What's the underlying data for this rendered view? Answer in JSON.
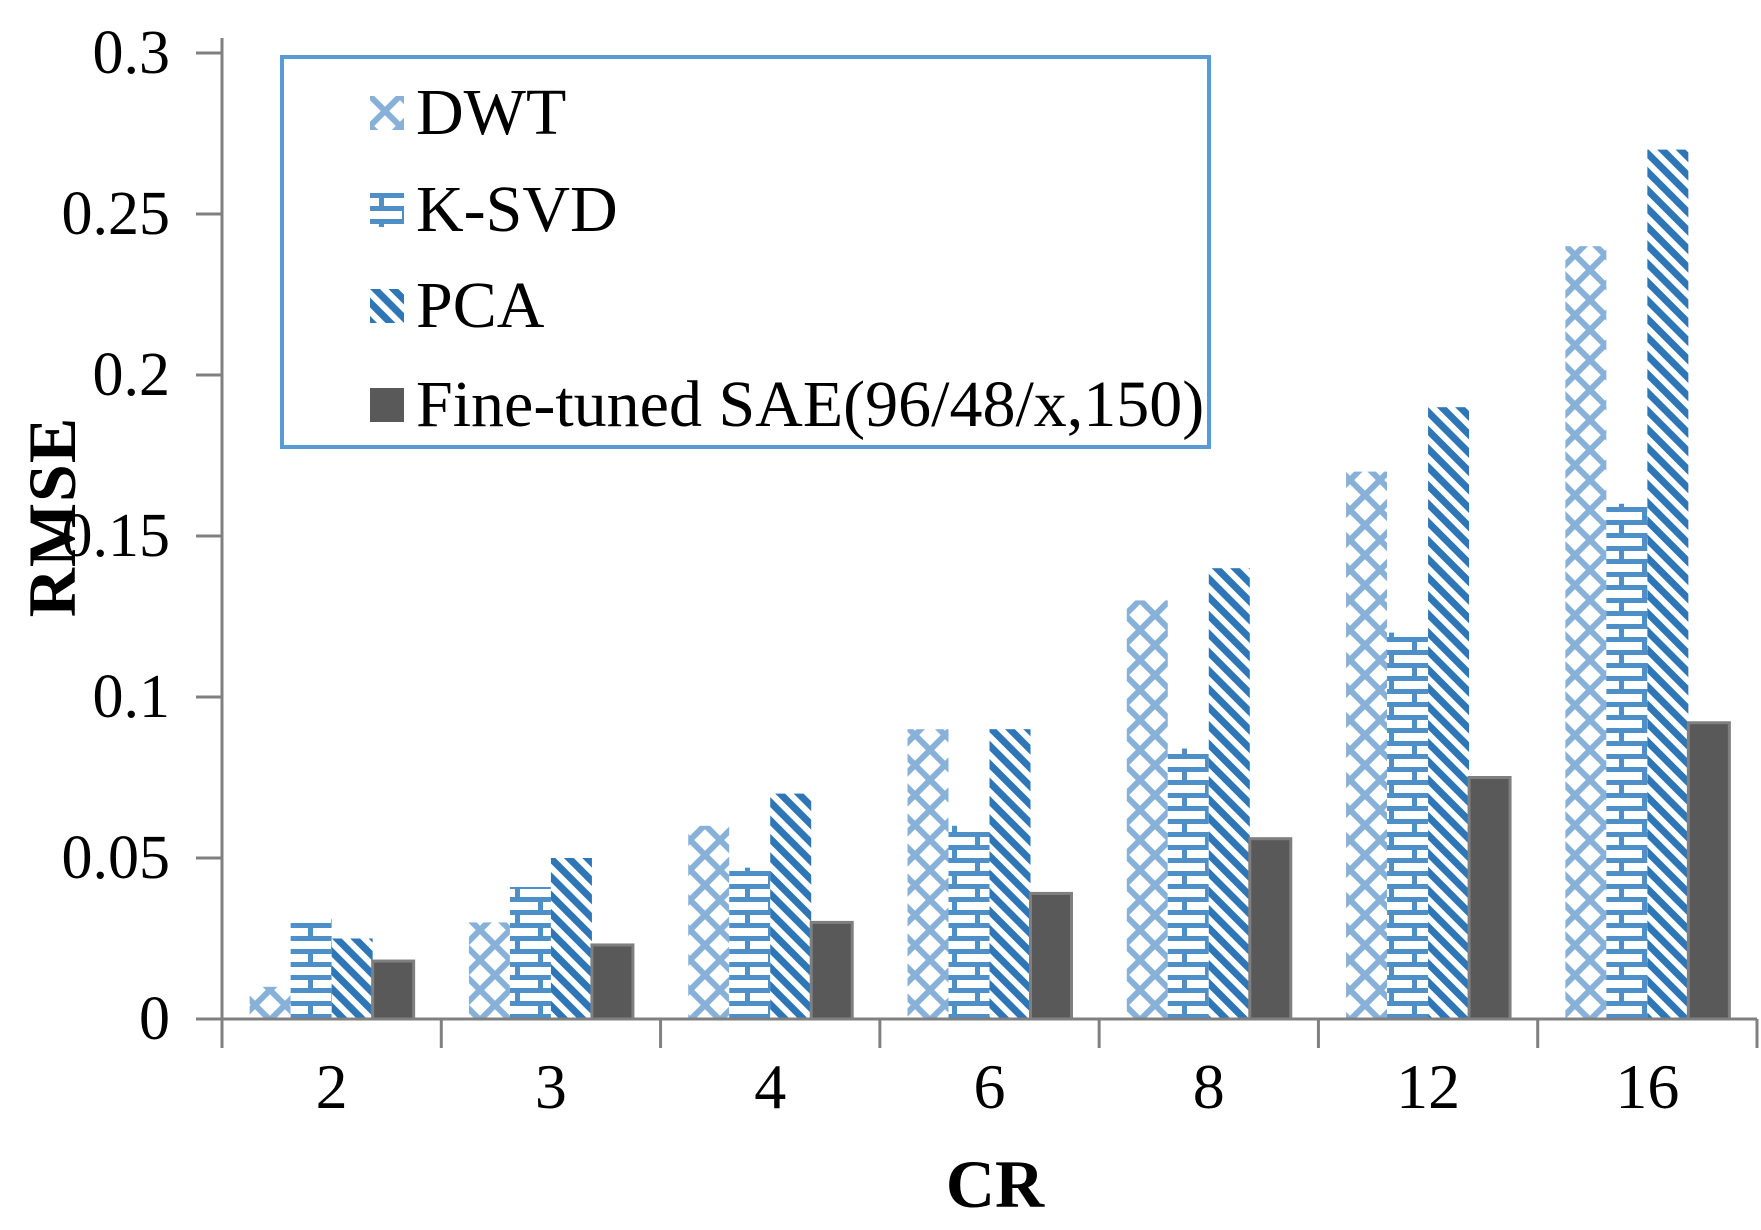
{
  "figure": {
    "background": "#ffffff",
    "y_axis_title": "RMSE",
    "x_axis_title": "CR"
  },
  "colors": {
    "axis": "#808080",
    "text": "#000000",
    "legend_border": "#5B9BD5",
    "dwt_pattern_blue": "#88B1DA",
    "ksvd_pattern_blue": "#4E8FC8",
    "pca_pattern_blue": "#2E76B6",
    "sae_fill_gray": "#595959",
    "sae_border_gray": "#7F7F7F"
  },
  "chart_data": {
    "type": "bar",
    "title": "",
    "xlabel": "CR",
    "ylabel": "RMSE",
    "categories": [
      "2",
      "3",
      "4",
      "6",
      "8",
      "12",
      "16"
    ],
    "series": [
      {
        "name": "DWT",
        "pattern": "diagonal-crosshatch",
        "color": "#88B1DA",
        "values": [
          0.01,
          0.03,
          0.06,
          0.09,
          0.13,
          0.17,
          0.24
        ]
      },
      {
        "name": "K-SVD",
        "pattern": "brick",
        "color": "#4E8FC8",
        "values": [
          0.031,
          0.041,
          0.047,
          0.06,
          0.084,
          0.12,
          0.16
        ]
      },
      {
        "name": "PCA",
        "pattern": "diagonal-stripes",
        "color": "#2E76B6",
        "values": [
          0.025,
          0.05,
          0.07,
          0.09,
          0.14,
          0.19,
          0.27
        ]
      },
      {
        "name": "Fine-tuned SAE(96/48/x,150)",
        "pattern": "solid",
        "color": "#595959",
        "values": [
          0.018,
          0.023,
          0.03,
          0.039,
          0.056,
          0.075,
          0.092
        ]
      }
    ],
    "y_ticks": [
      0,
      0.05,
      0.1,
      0.15,
      0.2,
      0.25,
      0.3
    ],
    "y_tick_labels": [
      "0",
      "0.05",
      "0.1",
      "0.15",
      "0.2",
      "0.25",
      "0.3"
    ],
    "ylim": [
      0,
      0.3
    ],
    "grid": false,
    "legend_position": "upper-left"
  }
}
